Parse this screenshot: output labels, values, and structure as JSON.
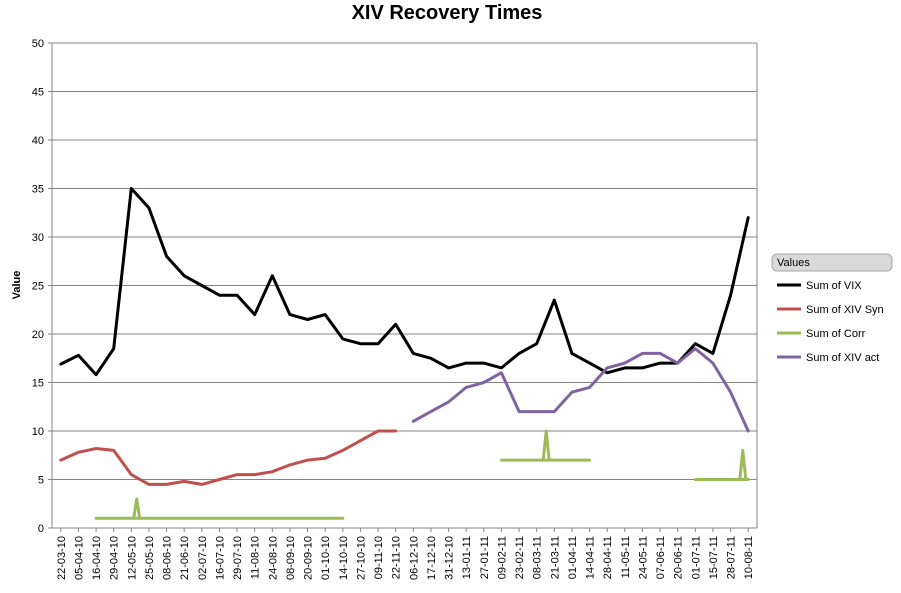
{
  "chart_data": {
    "type": "line",
    "title": "XIV Recovery Times",
    "xlabel": "",
    "ylabel": "Value",
    "ylim": [
      0,
      50
    ],
    "yticks": [
      0,
      5,
      10,
      15,
      20,
      25,
      30,
      35,
      40,
      45,
      50
    ],
    "grid": "horizontal",
    "legend": {
      "title": "Values",
      "placement": "right"
    },
    "categories": [
      "22-03-10",
      "05-04-10",
      "16-04-10",
      "29-04-10",
      "12-05-10",
      "25-05-10",
      "08-06-10",
      "21-06-10",
      "02-07-10",
      "16-07-10",
      "29-07-10",
      "11-08-10",
      "24-08-10",
      "08-09-10",
      "20-09-10",
      "01-10-10",
      "14-10-10",
      "27-10-10",
      "09-11-10",
      "22-11-10",
      "06-12-10",
      "17-12-10",
      "31-12-10",
      "13-01-11",
      "27-01-11",
      "09-02-11",
      "23-02-11",
      "08-03-11",
      "21-03-11",
      "01-04-11",
      "14-04-11",
      "28-04-11",
      "11-05-11",
      "24-05-11",
      "07-06-11",
      "20-06-11",
      "01-07-11",
      "15-07-11",
      "28-07-11",
      "10-08-11"
    ],
    "series": [
      {
        "name": "Sum of VIX",
        "color": "#000000",
        "values": [
          16.9,
          17.8,
          15.8,
          18.5,
          35.0,
          33.0,
          28.0,
          26.0,
          25.0,
          24.0,
          24.0,
          22.0,
          26.0,
          22.0,
          21.5,
          22.0,
          19.5,
          19.0,
          19.0,
          21.0,
          18.0,
          17.5,
          16.5,
          17.0,
          17.0,
          16.5,
          18.0,
          19.0,
          23.5,
          18.0,
          17.0,
          16.0,
          16.5,
          16.5,
          17.0,
          17.0,
          19.0,
          18.0,
          24.0,
          32.0
        ]
      },
      {
        "name": "Sum of XIV Syn",
        "color": "#c0504d",
        "values": [
          7.0,
          7.8,
          8.2,
          8.0,
          5.5,
          4.5,
          4.5,
          4.8,
          4.5,
          5.0,
          5.5,
          5.5,
          5.8,
          6.5,
          7.0,
          7.2,
          8.0,
          9.0,
          10.0,
          10.0,
          null,
          null,
          null,
          null,
          null,
          null,
          null,
          null,
          null,
          null,
          null,
          null,
          null,
          null,
          null,
          null,
          null,
          null,
          null,
          null
        ]
      },
      {
        "name": "Sum of Corr",
        "color": "#9bbb59",
        "values": [
          null,
          null,
          1.0,
          1.0,
          1.0,
          1.0,
          1.0,
          1.0,
          1.0,
          1.0,
          1.0,
          1.0,
          1.0,
          1.0,
          1.0,
          1.0,
          1.0,
          null,
          null,
          null,
          null,
          null,
          null,
          null,
          null,
          7.0,
          7.0,
          7.0,
          7.0,
          7.0,
          7.0,
          null,
          null,
          null,
          null,
          null,
          5.0,
          5.0,
          5.0,
          5.0
        ]
      },
      {
        "name": "Sum of XIV act",
        "color": "#8064a2",
        "values": [
          null,
          null,
          null,
          null,
          null,
          null,
          null,
          null,
          null,
          null,
          null,
          null,
          null,
          null,
          null,
          null,
          null,
          null,
          null,
          null,
          11.0,
          12.0,
          13.0,
          14.5,
          15.0,
          16.0,
          12.0,
          12.0,
          12.0,
          14.0,
          14.5,
          16.5,
          17.0,
          18.0,
          18.0,
          17.0,
          18.5,
          17.0,
          14.0,
          10.0
        ]
      }
    ],
    "spikes": [
      {
        "series": "Sum of Corr",
        "x": "16-05-10",
        "value": 3.0
      },
      {
        "series": "Sum of Corr",
        "x": "15-03-11",
        "value": 10.0
      },
      {
        "series": "Sum of Corr",
        "x": "06-08-11",
        "value": 8.0
      }
    ]
  }
}
